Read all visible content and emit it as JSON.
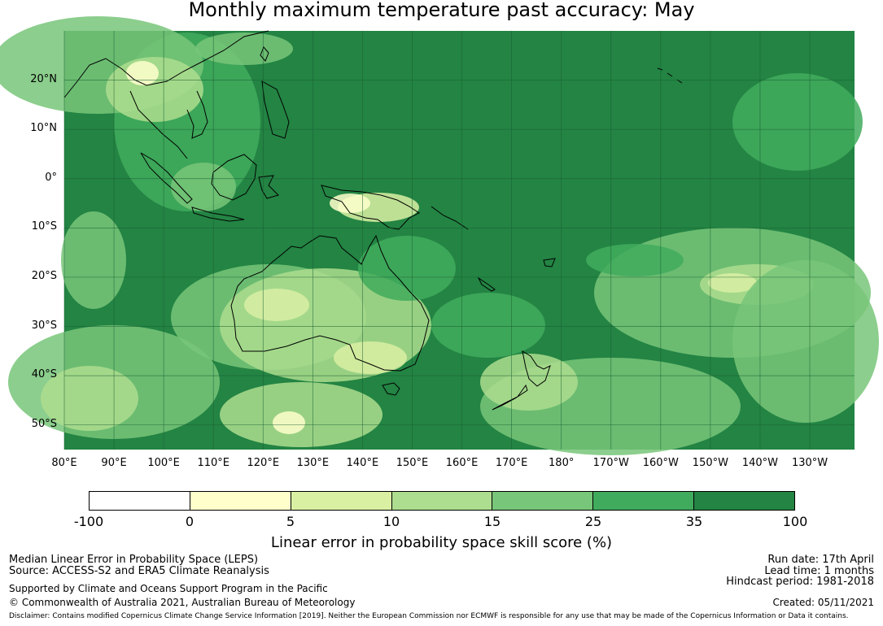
{
  "title": "Monthly maximum temperature past accuracy: May",
  "map": {
    "lat_labels": [
      "20°N",
      "10°N",
      "0°",
      "10°S",
      "20°S",
      "30°S",
      "40°S",
      "50°S"
    ],
    "lon_labels": [
      "80°E",
      "90°E",
      "100°E",
      "110°E",
      "120°E",
      "130°E",
      "140°E",
      "150°E",
      "160°E",
      "170°E",
      "180°",
      "170°W",
      "160°W",
      "150°W",
      "140°W",
      "130°W"
    ],
    "extent": {
      "lon_min": 80,
      "lon_max": 239,
      "lat_min": -55,
      "lat_max": 30
    }
  },
  "colorbar": {
    "ticks": [
      "-100",
      "0",
      "5",
      "10",
      "15",
      "25",
      "35",
      "100"
    ],
    "colors": [
      "#ffffff",
      "#ffffcc",
      "#d9f0a3",
      "#addd8e",
      "#78c679",
      "#41ab5d",
      "#238443"
    ],
    "label": "Linear error in probability space skill score (%)"
  },
  "footer": {
    "line1": "Median Linear Error in Probability Space (LEPS)",
    "line2": "Source: ACCESS-S2 and ERA5 Climate Reanalysis",
    "line3": "Supported by Climate and Oceans Support Program in the Pacific",
    "line4": "© Commonwealth of Australia 2021, Australian Bureau of Meteorology",
    "run_date": "Run date: 17th April",
    "lead_time": "Lead time: 1 months",
    "hindcast": "Hindcast period: 1981-2018",
    "created": "Created: 05/11/2021",
    "disclaimer": "Disclaimer: Contains modified Copernicus Climate Change Service Information [2019]. Neither the European Commission nor ECMWF is responsible for any use that may be made of the Copernicus Information or Data it contains."
  }
}
